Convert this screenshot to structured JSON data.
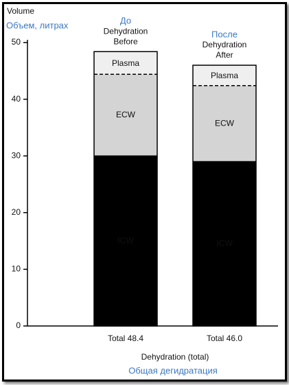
{
  "chart_data": {
    "type": "stacked_bar",
    "y_title": "Volume",
    "y_title_ru": "Объем, литрах",
    "x_title": "Dehydration (total)",
    "x_title_ru": "Общая дегидратация",
    "header_labels": [
      [
        "До",
        "Dehydration",
        "Before"
      ],
      [
        "После",
        "Dehydration",
        "After"
      ]
    ],
    "categories": [
      "Total 48.4",
      "Total 46.0"
    ],
    "totals": [
      48.4,
      46.0
    ],
    "series": [
      {
        "name": "ICW",
        "color": "#000000",
        "label_color": "#ffffff",
        "values": [
          30,
          29
        ]
      },
      {
        "name": "ECW",
        "color": "#d4d4d4",
        "label_color": "#111111",
        "values": [
          14.4,
          13.4
        ]
      },
      {
        "name": "Plasma",
        "color": "#efefef",
        "label_color": "#111111",
        "values": [
          4.0,
          3.6
        ]
      }
    ],
    "ylim": [
      0,
      50
    ],
    "yticks": [
      0,
      10,
      20,
      30,
      40,
      50
    ]
  }
}
